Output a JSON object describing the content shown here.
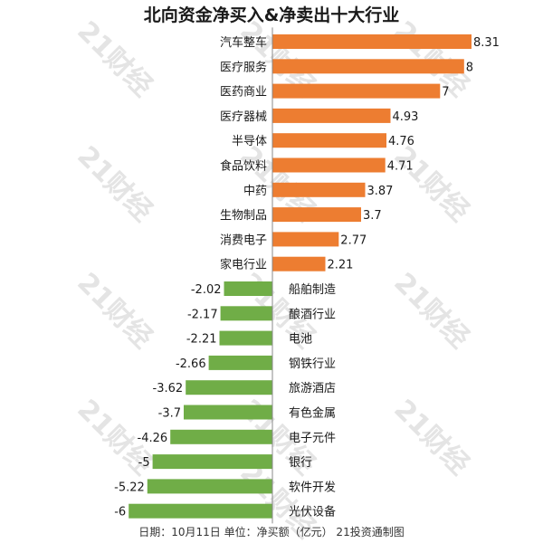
{
  "chart_data": {
    "type": "bar",
    "orientation": "horizontal",
    "title": "北向资金净买入&净卖出十大行业",
    "categories": [
      "汽车整车",
      "医疗服务",
      "医药商业",
      "医疗器械",
      "半导体",
      "食品饮料",
      "中药",
      "生物制品",
      "消费电子",
      "家电行业",
      "船舶制造",
      "酿酒行业",
      "电池",
      "钢铁行业",
      "旅游酒店",
      "有色金属",
      "电子元件",
      "银行",
      "软件开发",
      "光伏设备"
    ],
    "values": [
      8.31,
      8,
      7,
      4.93,
      4.76,
      4.71,
      3.87,
      3.7,
      2.77,
      2.21,
      -2.02,
      -2.17,
      -2.21,
      -2.66,
      -3.62,
      -3.7,
      -4.26,
      -5,
      -5.22,
      -6
    ],
    "value_labels": [
      "8.31",
      "8",
      "7",
      "4.93",
      "4.76",
      "4.71",
      "3.87",
      "3.7",
      "2.77",
      "2.21",
      "-2.02",
      "-2.17",
      "-2.21",
      "-2.66",
      "-3.62",
      "-3.7",
      "-4.26",
      "-5",
      "-5.22",
      "-6"
    ],
    "xlim": [
      -6,
      8.31
    ],
    "grid": false,
    "legend": "none",
    "colors": {
      "positive": "#ED7D31",
      "negative": "#70AD47",
      "axis": "#888888"
    }
  },
  "watermark": "21财经",
  "footer": "日期：10月11日 单位：净买额（亿元） 21投资通制图"
}
